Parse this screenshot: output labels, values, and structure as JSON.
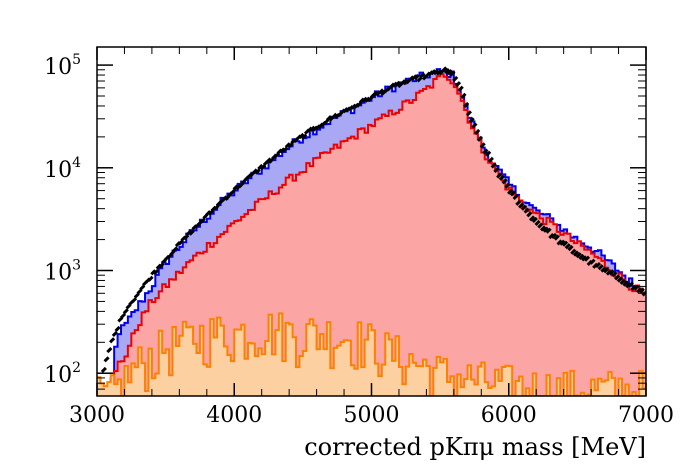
{
  "chart_data": {
    "type": "histogram",
    "xlabel": "corrected pKπμ mass [MeV]",
    "ylabel": "",
    "xlim": [
      3000,
      7000
    ],
    "ylim": [
      60,
      150000
    ],
    "yscale": "log",
    "grid": false,
    "x_ticks": [
      {
        "value": 3000,
        "label": "3000"
      },
      {
        "value": 4000,
        "label": "4000"
      },
      {
        "value": 5000,
        "label": "5000"
      },
      {
        "value": 6000,
        "label": "6000"
      },
      {
        "value": 7000,
        "label": "7000"
      }
    ],
    "y_ticks": [
      {
        "value": 100,
        "base": "10",
        "exp": "2"
      },
      {
        "value": 1000,
        "base": "10",
        "exp": "3"
      },
      {
        "value": 10000,
        "base": "10",
        "exp": "4"
      },
      {
        "value": 100000,
        "base": "10",
        "exp": "5"
      }
    ],
    "series": [
      {
        "style": "filled-step",
        "fill": "#a8a8f5",
        "line": "#0000ee",
        "shape": [
          [
            3000,
            60
          ],
          [
            3100,
            60
          ],
          [
            3150,
            250
          ],
          [
            3200,
            280
          ],
          [
            3300,
            450
          ],
          [
            3400,
            700
          ],
          [
            3500,
            1200
          ],
          [
            3600,
            1700
          ],
          [
            3700,
            2400
          ],
          [
            3800,
            3300
          ],
          [
            3900,
            4500
          ],
          [
            4000,
            5900
          ],
          [
            4100,
            7600
          ],
          [
            4200,
            9800
          ],
          [
            4300,
            12500
          ],
          [
            4400,
            16000
          ],
          [
            4500,
            20000
          ],
          [
            4600,
            24000
          ],
          [
            4700,
            29000
          ],
          [
            4800,
            34000
          ],
          [
            4900,
            40000
          ],
          [
            5000,
            48000
          ],
          [
            5100,
            56000
          ],
          [
            5200,
            65000
          ],
          [
            5300,
            72000
          ],
          [
            5400,
            80000
          ],
          [
            5480,
            85000
          ],
          [
            5540,
            87000
          ],
          [
            5600,
            78000
          ],
          [
            5650,
            55000
          ],
          [
            5700,
            35000
          ],
          [
            5750,
            24000
          ],
          [
            5800,
            17000
          ],
          [
            5900,
            10500
          ],
          [
            6000,
            7000
          ],
          [
            6100,
            5000
          ],
          [
            6200,
            3800
          ],
          [
            6300,
            3200
          ],
          [
            6400,
            2500
          ],
          [
            6500,
            2000
          ],
          [
            6600,
            1700
          ],
          [
            6700,
            1300
          ],
          [
            6800,
            1000
          ],
          [
            6900,
            750
          ],
          [
            7000,
            600
          ]
        ]
      },
      {
        "style": "filled-step",
        "fill": "#fba5a5",
        "line": "#ee0000",
        "shape": [
          [
            3000,
            60
          ],
          [
            3100,
            60
          ],
          [
            3150,
            120
          ],
          [
            3200,
            140
          ],
          [
            3300,
            300
          ],
          [
            3400,
            500
          ],
          [
            3500,
            700
          ],
          [
            3600,
            950
          ],
          [
            3700,
            1300
          ],
          [
            3800,
            1700
          ],
          [
            3900,
            2200
          ],
          [
            4000,
            2900
          ],
          [
            4100,
            3700
          ],
          [
            4200,
            4700
          ],
          [
            4300,
            6000
          ],
          [
            4400,
            7600
          ],
          [
            4500,
            9500
          ],
          [
            4600,
            11700
          ],
          [
            4700,
            14500
          ],
          [
            4800,
            17500
          ],
          [
            4900,
            21500
          ],
          [
            5000,
            26000
          ],
          [
            5100,
            31000
          ],
          [
            5200,
            38000
          ],
          [
            5300,
            46000
          ],
          [
            5400,
            58000
          ],
          [
            5480,
            72000
          ],
          [
            5540,
            82000
          ],
          [
            5600,
            70000
          ],
          [
            5650,
            50000
          ],
          [
            5700,
            33000
          ],
          [
            5750,
            23000
          ],
          [
            5800,
            16000
          ],
          [
            5900,
            9800
          ],
          [
            6000,
            6300
          ],
          [
            6100,
            4500
          ],
          [
            6200,
            3500
          ],
          [
            6300,
            2900
          ],
          [
            6400,
            2300
          ],
          [
            6500,
            1800
          ],
          [
            6600,
            1500
          ],
          [
            6700,
            1150
          ],
          [
            6800,
            900
          ],
          [
            6900,
            700
          ],
          [
            7000,
            580
          ]
        ]
      },
      {
        "style": "filled-step",
        "fill": "#fdd0a2",
        "line": "#ff8000",
        "shape": [
          [
            3000,
            60
          ],
          [
            3100,
            60
          ],
          [
            3150,
            70
          ],
          [
            3200,
            85
          ],
          [
            3300,
            120
          ],
          [
            3400,
            150
          ],
          [
            3500,
            180
          ],
          [
            3600,
            200
          ],
          [
            3700,
            220
          ],
          [
            3800,
            240
          ],
          [
            3900,
            250
          ],
          [
            4000,
            240
          ],
          [
            4100,
            260
          ],
          [
            4200,
            270
          ],
          [
            4300,
            270
          ],
          [
            4400,
            250
          ],
          [
            4500,
            245
          ],
          [
            4600,
            250
          ],
          [
            4700,
            240
          ],
          [
            4800,
            230
          ],
          [
            4900,
            220
          ],
          [
            5000,
            200
          ],
          [
            5100,
            170
          ],
          [
            5200,
            150
          ],
          [
            5300,
            130
          ],
          [
            5400,
            115
          ],
          [
            5500,
            100
          ],
          [
            5600,
            95
          ],
          [
            5700,
            90
          ],
          [
            5800,
            85
          ],
          [
            5900,
            80
          ],
          [
            6000,
            78
          ],
          [
            6100,
            75
          ],
          [
            6200,
            72
          ],
          [
            6300,
            70
          ],
          [
            6400,
            70
          ],
          [
            6500,
            70
          ],
          [
            6600,
            70
          ],
          [
            6700,
            70
          ],
          [
            6800,
            70
          ],
          [
            6900,
            70
          ],
          [
            7000,
            70
          ]
        ]
      },
      {
        "style": "points",
        "color": "#000000",
        "shape": [
          [
            3050,
            105
          ],
          [
            3100,
            190
          ],
          [
            3150,
            280
          ],
          [
            3200,
            400
          ],
          [
            3300,
            600
          ],
          [
            3400,
            900
          ],
          [
            3500,
            1300
          ],
          [
            3600,
            1800
          ],
          [
            3700,
            2500
          ],
          [
            3800,
            3400
          ],
          [
            3900,
            4600
          ],
          [
            4000,
            6100
          ],
          [
            4100,
            7900
          ],
          [
            4200,
            10200
          ],
          [
            4300,
            13000
          ],
          [
            4400,
            16500
          ],
          [
            4500,
            20500
          ],
          [
            4600,
            25000
          ],
          [
            4700,
            30000
          ],
          [
            4800,
            35500
          ],
          [
            4900,
            41500
          ],
          [
            5000,
            49000
          ],
          [
            5100,
            57000
          ],
          [
            5200,
            65000
          ],
          [
            5300,
            72000
          ],
          [
            5400,
            79000
          ],
          [
            5480,
            85000
          ],
          [
            5540,
            88000
          ],
          [
            5600,
            80000
          ],
          [
            5650,
            58000
          ],
          [
            5700,
            37000
          ],
          [
            5750,
            25000
          ],
          [
            5800,
            17500
          ],
          [
            5900,
            10000
          ],
          [
            6000,
            6200
          ],
          [
            6100,
            4200
          ],
          [
            6200,
            3000
          ],
          [
            6300,
            2300
          ],
          [
            6400,
            1800
          ],
          [
            6500,
            1450
          ],
          [
            6600,
            1200
          ],
          [
            6700,
            1000
          ],
          [
            6800,
            850
          ],
          [
            6900,
            700
          ],
          [
            7000,
            600
          ]
        ]
      }
    ]
  }
}
